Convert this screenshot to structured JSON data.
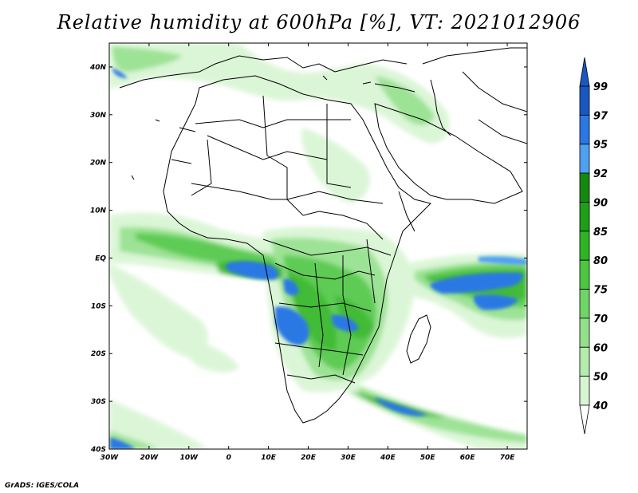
{
  "title": "Relative humidity at 600hPa [%], VT: 2021012906",
  "credit": "GrADS: IGES/COLA",
  "map": {
    "lat_labels": [
      "40N",
      "30N",
      "20N",
      "10N",
      "EQ",
      "10S",
      "20S",
      "30S",
      "40S"
    ],
    "lon_labels": [
      "30W",
      "20W",
      "10W",
      "0",
      "10E",
      "20E",
      "30E",
      "40E",
      "50E",
      "60E",
      "70E"
    ],
    "lat_range": [
      -40,
      45
    ],
    "lon_range": [
      -30,
      75
    ]
  },
  "colorbar": {
    "levels": [
      "40",
      "50",
      "60",
      "70",
      "75",
      "80",
      "85",
      "90",
      "92",
      "95",
      "97",
      "99"
    ],
    "colors": [
      "#f5fff3",
      "#d8f5d3",
      "#b5ecae",
      "#93e08a",
      "#70d466",
      "#4dc742",
      "#2fb424",
      "#1f9e18",
      "#15880f",
      "#4fa0f0",
      "#2b78e4",
      "#1a58c0",
      "#1a58c0"
    ]
  }
}
